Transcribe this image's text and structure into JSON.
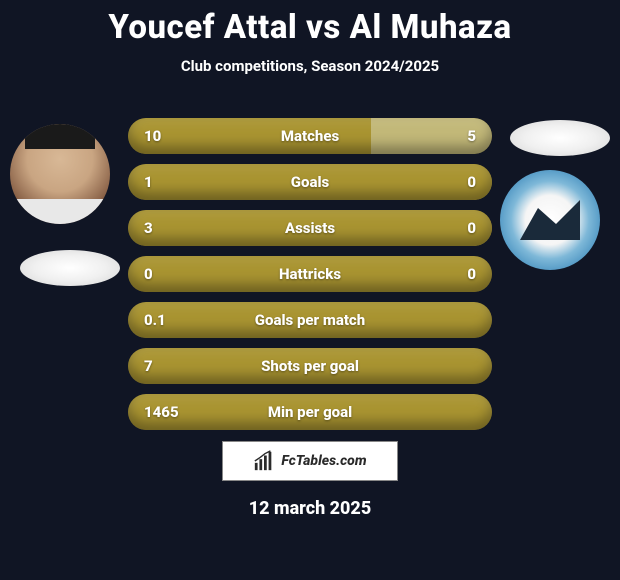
{
  "background_color": "#101524",
  "text_color": "#ffffff",
  "title": "Youcef Attal vs Al Muhaza",
  "subtitle": "Club competitions, Season 2024/2025",
  "bar_colors": {
    "primary": "#a99431",
    "secondary": "#c2b878",
    "track": "#7a6d2a"
  },
  "bars": [
    {
      "label": "Matches",
      "left": "10",
      "right": "5",
      "left_pct": 66.7,
      "right_pct": 33.3,
      "split": true
    },
    {
      "label": "Goals",
      "left": "1",
      "right": "0",
      "left_pct": 100,
      "right_pct": 0,
      "split": true
    },
    {
      "label": "Assists",
      "left": "3",
      "right": "0",
      "left_pct": 100,
      "right_pct": 0,
      "split": true
    },
    {
      "label": "Hattricks",
      "left": "0",
      "right": "0",
      "left_pct": 0,
      "right_pct": 0,
      "split": false
    },
    {
      "label": "Goals per match",
      "left": "0.1",
      "right": "",
      "left_pct": 100,
      "right_pct": 0,
      "split": false
    },
    {
      "label": "Shots per goal",
      "left": "7",
      "right": "",
      "left_pct": 100,
      "right_pct": 0,
      "split": false
    },
    {
      "label": "Min per goal",
      "left": "1465",
      "right": "",
      "left_pct": 100,
      "right_pct": 0,
      "split": false
    }
  ],
  "footer": {
    "logo_text": "FcTables.com",
    "date": "12 march 2025"
  }
}
